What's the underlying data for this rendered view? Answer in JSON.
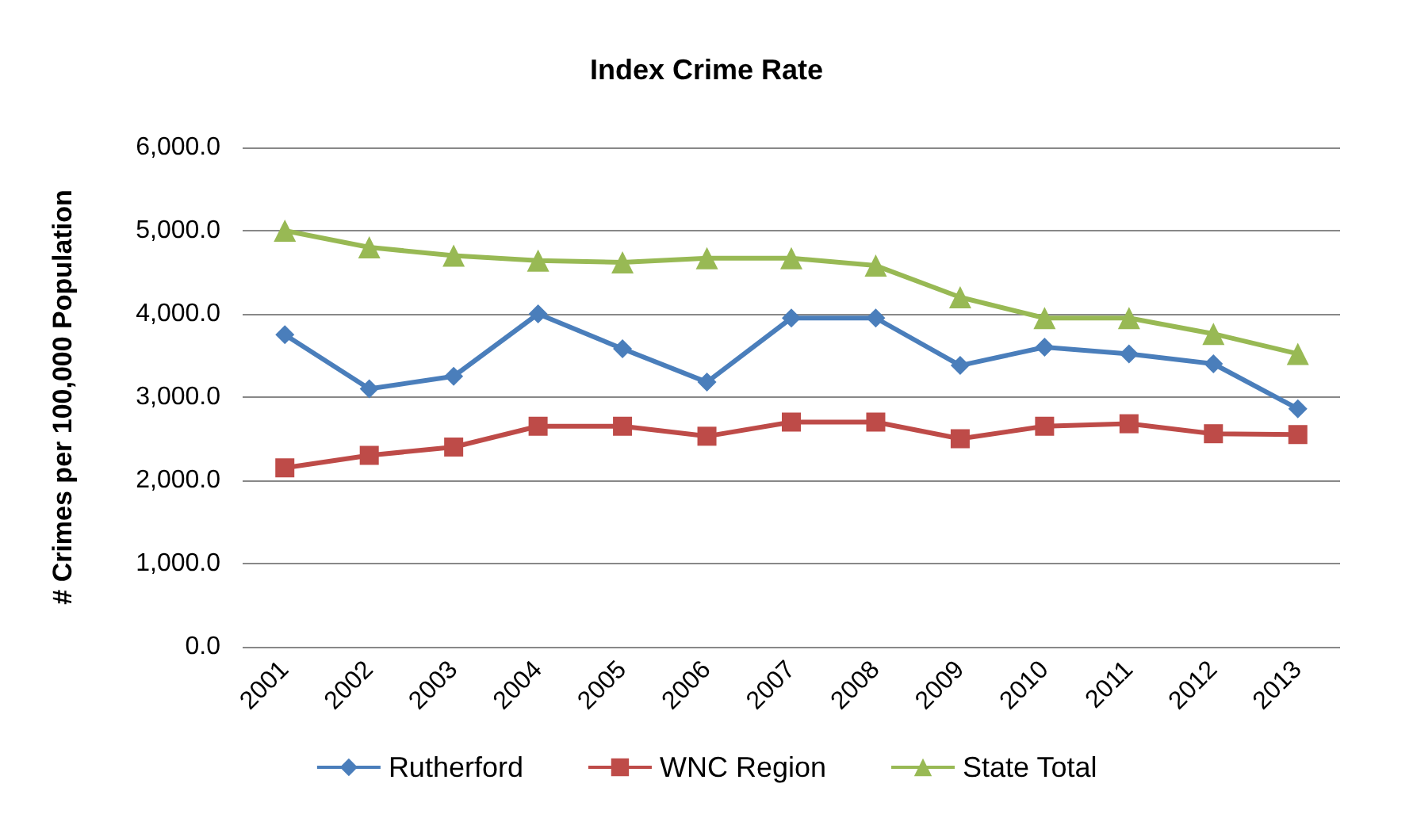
{
  "chart_data": {
    "type": "line",
    "title": "Index Crime Rate",
    "ylabel": "# Crimes per 100,000 Population",
    "categories": [
      "2001",
      "2002",
      "2003",
      "2004",
      "2005",
      "2006",
      "2007",
      "2008",
      "2009",
      "2010",
      "2011",
      "2012",
      "2013"
    ],
    "series": [
      {
        "name": "Rutherford",
        "color": "#4a7ebb",
        "marker": "diamond",
        "values": [
          3750,
          3100,
          3250,
          4000,
          3580,
          3180,
          3950,
          3950,
          3380,
          3600,
          3520,
          3400,
          2860
        ]
      },
      {
        "name": "WNC Region",
        "color": "#be4b48",
        "marker": "square",
        "values": [
          2150,
          2300,
          2400,
          2650,
          2650,
          2530,
          2700,
          2700,
          2500,
          2650,
          2680,
          2560,
          2550
        ]
      },
      {
        "name": "State Total",
        "color": "#98b954",
        "marker": "triangle",
        "values": [
          5000,
          4800,
          4700,
          4640,
          4620,
          4670,
          4670,
          4580,
          4200,
          3950,
          3950,
          3760,
          3520
        ]
      }
    ],
    "ylim": [
      0,
      6000
    ],
    "yticks": [
      {
        "value": 0,
        "label": "0.0"
      },
      {
        "value": 1000,
        "label": "1,000.0"
      },
      {
        "value": 2000,
        "label": "2,000.0"
      },
      {
        "value": 3000,
        "label": "3,000.0"
      },
      {
        "value": 4000,
        "label": "4,000.0"
      },
      {
        "value": 5000,
        "label": "5,000.0"
      },
      {
        "value": 6000,
        "label": "6,000.0"
      }
    ],
    "grid": "y",
    "legend": "bottom",
    "line_style": "solid"
  }
}
